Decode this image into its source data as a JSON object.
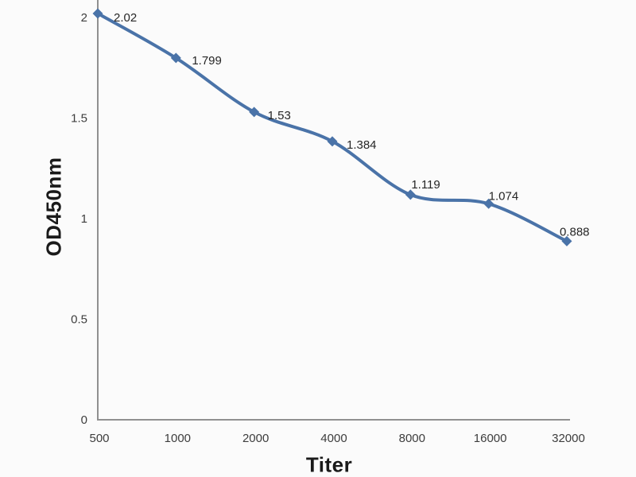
{
  "chart_data": {
    "type": "line",
    "title": "",
    "xlabel": "Titer",
    "ylabel": "OD450nm",
    "categories": [
      "500",
      "1000",
      "2000",
      "4000",
      "8000",
      "16000",
      "32000"
    ],
    "series": [
      {
        "name": "OD450nm",
        "values": [
          2.02,
          1.799,
          1.53,
          1.384,
          1.119,
          1.074,
          0.888
        ]
      }
    ],
    "point_labels": [
      "2.02",
      "1.799",
      "1.53",
      "1.384",
      "1.119",
      "1.074",
      "0.888"
    ],
    "yticks": [
      "0",
      "0.5",
      "1",
      "1.5",
      "2"
    ],
    "ytick_values": [
      0,
      0.5,
      1,
      1.5,
      2
    ],
    "ylim": [
      0,
      2.09
    ],
    "xscale": "log-category",
    "grid": false,
    "legend": "none",
    "marker": "diamond",
    "colors": {
      "line": "#4a73a8",
      "marker": "#4a73a8",
      "axis": "#909090",
      "tick_text": "#3d3d3d",
      "label_text": "#262626",
      "background": "#fbfbfb"
    }
  }
}
